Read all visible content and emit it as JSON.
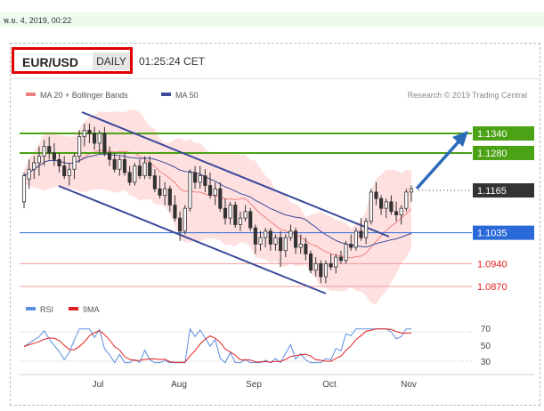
{
  "timestamp": "พ.ย. 4, 2019, 00:22",
  "header": {
    "pair": "EUR/USD",
    "timeframe": "DAILY",
    "time": "01:25:24 CET"
  },
  "legend": {
    "ma20": "MA 20 + Bollinger Bands",
    "ma50": "MA 50",
    "credit": "Research © 2019 Trading Central",
    "rsi": "RSI",
    "rsi9": "9MA"
  },
  "colors": {
    "green": "#4aa214",
    "blue": "#2a6ad8",
    "dark": "#333333",
    "red": "#e02020",
    "bollinger": "#ffd5d5",
    "ma50": "#3a4a9a",
    "channel": "#3a4a9a",
    "candle_up": "#ffffff",
    "candle_down": "#333333"
  },
  "chart_data": {
    "type": "candlestick",
    "x_labels": [
      "Jul",
      "Aug",
      "Sep",
      "Oct",
      "Nov"
    ],
    "y_range": [
      1.0845,
      1.1365
    ],
    "levels": [
      {
        "label": "1.1340",
        "value": 1.134,
        "kind": "resistance"
      },
      {
        "label": "1.1280",
        "value": 1.128,
        "kind": "resistance"
      },
      {
        "label": "1.1165",
        "value": 1.1165,
        "kind": "last"
      },
      {
        "label": "1.1035",
        "value": 1.1035,
        "kind": "pivot"
      },
      {
        "label": "1.0940",
        "value": 1.094,
        "kind": "support"
      },
      {
        "label": "1.0870",
        "value": 1.087,
        "kind": "support"
      }
    ],
    "rsi_ticks": [
      "70",
      "50",
      "30"
    ],
    "candles": [
      [
        1.113,
        1.122,
        1.111,
        1.121
      ],
      [
        1.12,
        1.126,
        1.117,
        1.123
      ],
      [
        1.123,
        1.127,
        1.12,
        1.125
      ],
      [
        1.125,
        1.13,
        1.121,
        1.127
      ],
      [
        1.127,
        1.132,
        1.124,
        1.13
      ],
      [
        1.13,
        1.133,
        1.126,
        1.128
      ],
      [
        1.128,
        1.131,
        1.124,
        1.126
      ],
      [
        1.126,
        1.128,
        1.122,
        1.124
      ],
      [
        1.124,
        1.127,
        1.12,
        1.121
      ],
      [
        1.121,
        1.125,
        1.118,
        1.123
      ],
      [
        1.123,
        1.128,
        1.12,
        1.127
      ],
      [
        1.127,
        1.135,
        1.125,
        1.133
      ],
      [
        1.133,
        1.137,
        1.13,
        1.135
      ],
      [
        1.135,
        1.137,
        1.131,
        1.134
      ],
      [
        1.134,
        1.136,
        1.129,
        1.131
      ],
      [
        1.131,
        1.135,
        1.128,
        1.134
      ],
      [
        1.134,
        1.136,
        1.127,
        1.128
      ],
      [
        1.128,
        1.13,
        1.124,
        1.126
      ],
      [
        1.126,
        1.128,
        1.122,
        1.123
      ],
      [
        1.123,
        1.127,
        1.121,
        1.126
      ],
      [
        1.126,
        1.128,
        1.121,
        1.122
      ],
      [
        1.122,
        1.124,
        1.118,
        1.119
      ],
      [
        1.119,
        1.125,
        1.118,
        1.124
      ],
      [
        1.124,
        1.126,
        1.12,
        1.121
      ],
      [
        1.121,
        1.127,
        1.12,
        1.125
      ],
      [
        1.125,
        1.127,
        1.12,
        1.121
      ],
      [
        1.121,
        1.123,
        1.116,
        1.117
      ],
      [
        1.117,
        1.121,
        1.114,
        1.115
      ],
      [
        1.115,
        1.119,
        1.112,
        1.117
      ],
      [
        1.117,
        1.118,
        1.11,
        1.112
      ],
      [
        1.112,
        1.115,
        1.107,
        1.108
      ],
      [
        1.108,
        1.11,
        1.101,
        1.104
      ],
      [
        1.104,
        1.112,
        1.103,
        1.111
      ],
      [
        1.111,
        1.123,
        1.11,
        1.122
      ],
      [
        1.122,
        1.124,
        1.117,
        1.119
      ],
      [
        1.119,
        1.124,
        1.117,
        1.121
      ],
      [
        1.121,
        1.123,
        1.116,
        1.118
      ],
      [
        1.118,
        1.122,
        1.114,
        1.115
      ],
      [
        1.115,
        1.119,
        1.112,
        1.117
      ],
      [
        1.117,
        1.119,
        1.11,
        1.111
      ],
      [
        1.111,
        1.114,
        1.106,
        1.108
      ],
      [
        1.108,
        1.113,
        1.106,
        1.112
      ],
      [
        1.112,
        1.113,
        1.105,
        1.106
      ],
      [
        1.106,
        1.11,
        1.104,
        1.108
      ],
      [
        1.108,
        1.112,
        1.107,
        1.11
      ],
      [
        1.11,
        1.111,
        1.104,
        1.105
      ],
      [
        1.105,
        1.106,
        1.097,
        1.1
      ],
      [
        1.1,
        1.104,
        1.098,
        1.102
      ],
      [
        1.102,
        1.105,
        1.099,
        1.104
      ],
      [
        1.104,
        1.105,
        1.098,
        1.1
      ],
      [
        1.1,
        1.103,
        1.098,
        1.102
      ],
      [
        1.102,
        1.104,
        1.093,
        1.098
      ],
      [
        1.098,
        1.103,
        1.096,
        1.102
      ],
      [
        1.102,
        1.106,
        1.101,
        1.104
      ],
      [
        1.104,
        1.105,
        1.097,
        1.099
      ],
      [
        1.099,
        1.103,
        1.097,
        1.1
      ],
      [
        1.1,
        1.102,
        1.095,
        1.097
      ],
      [
        1.097,
        1.098,
        1.091,
        1.092
      ],
      [
        1.092,
        1.096,
        1.09,
        1.094
      ],
      [
        1.094,
        1.095,
        1.088,
        1.09
      ],
      [
        1.09,
        1.095,
        1.088,
        1.094
      ],
      [
        1.094,
        1.097,
        1.092,
        1.093
      ],
      [
        1.093,
        1.097,
        1.091,
        1.096
      ],
      [
        1.096,
        1.098,
        1.094,
        1.095
      ],
      [
        1.095,
        1.101,
        1.094,
        1.1
      ],
      [
        1.1,
        1.103,
        1.098,
        1.099
      ],
      [
        1.099,
        1.105,
        1.098,
        1.104
      ],
      [
        1.104,
        1.108,
        1.101,
        1.102
      ],
      [
        1.102,
        1.108,
        1.1,
        1.107
      ],
      [
        1.107,
        1.117,
        1.106,
        1.116
      ],
      [
        1.116,
        1.119,
        1.112,
        1.114
      ],
      [
        1.114,
        1.115,
        1.109,
        1.111
      ],
      [
        1.111,
        1.114,
        1.108,
        1.113
      ],
      [
        1.113,
        1.115,
        1.109,
        1.11
      ],
      [
        1.11,
        1.113,
        1.107,
        1.109
      ],
      [
        1.109,
        1.112,
        1.106,
        1.111
      ],
      [
        1.111,
        1.117,
        1.11,
        1.116
      ],
      [
        1.116,
        1.118,
        1.113,
        1.117
      ]
    ]
  }
}
